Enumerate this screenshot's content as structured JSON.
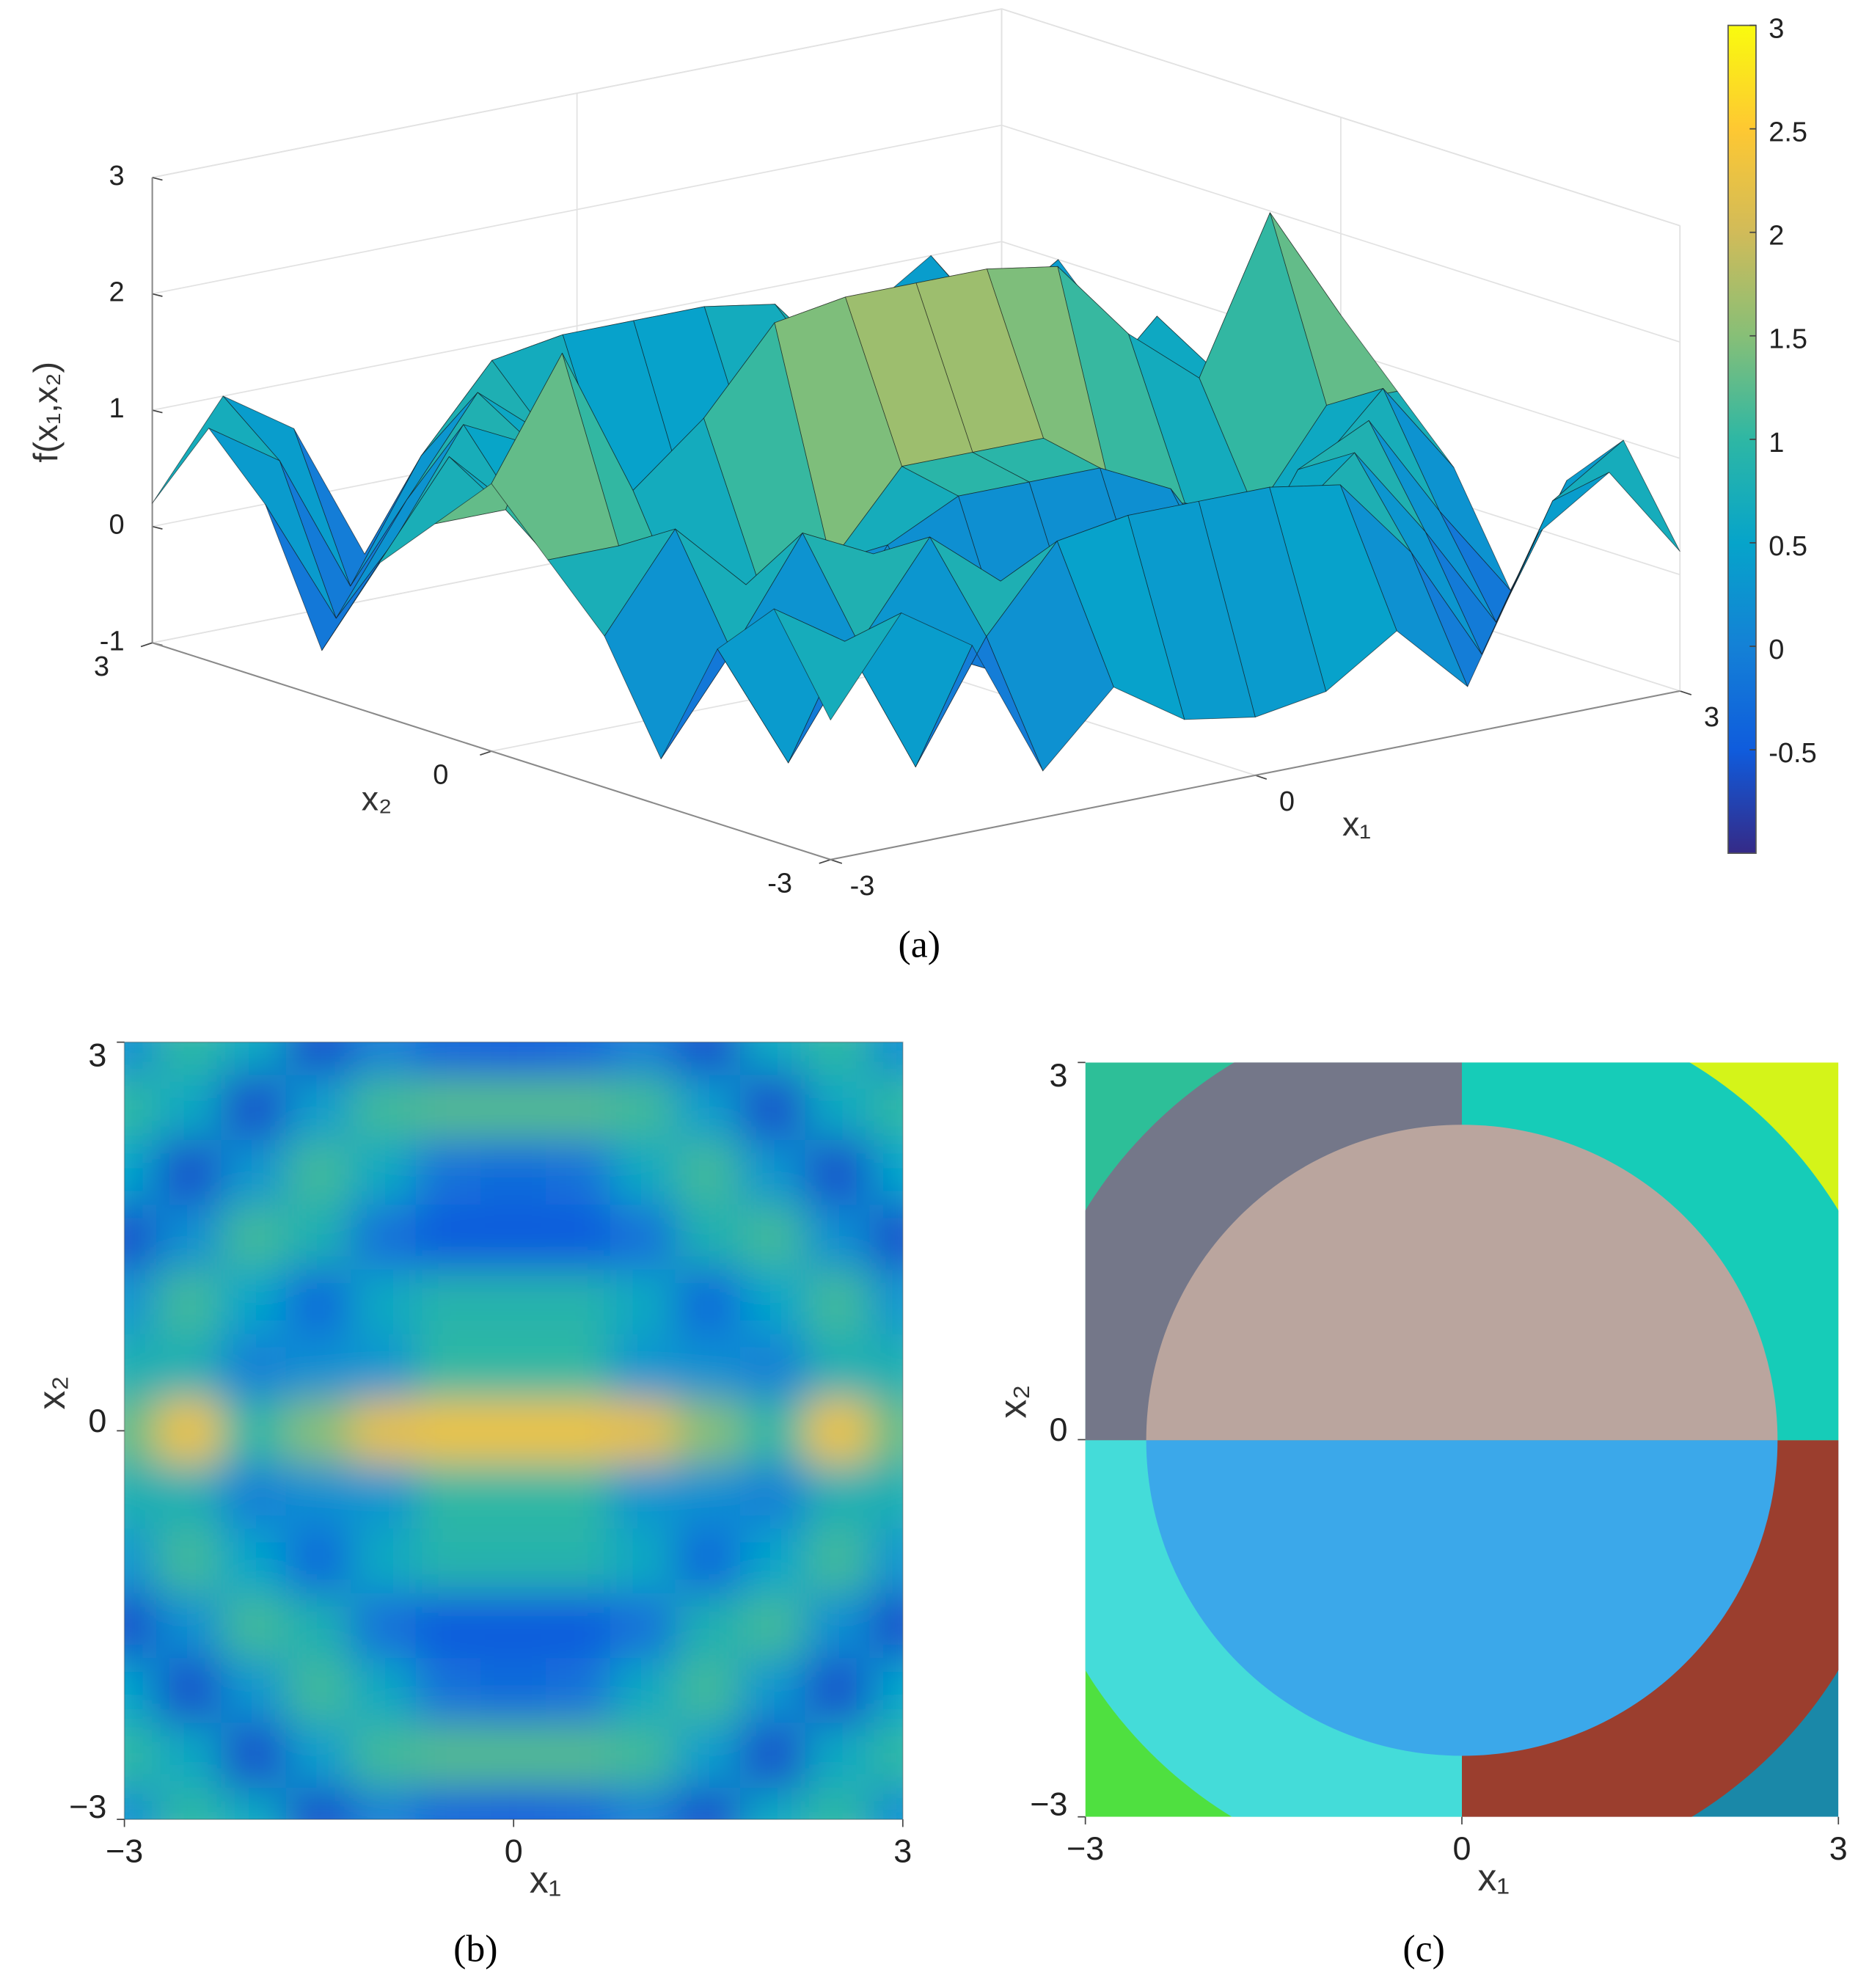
{
  "chart_data": [
    {
      "type": "surface3d",
      "label": "(a)",
      "xlabel": "x₁",
      "ylabel": "x₂",
      "zlabel": "f(x₁,x₂)",
      "x": [
        -3,
        -2.5,
        -2,
        -1.5,
        -1,
        -0.5,
        0,
        0.5,
        1,
        1.5,
        2,
        2.5,
        3
      ],
      "y": [
        -3,
        -2.5,
        -2,
        -1.5,
        -1,
        -0.5,
        0,
        0.5,
        1,
        1.5,
        2,
        2.5,
        3
      ],
      "z": [
        [
          0.2,
          1.0,
          0.6,
          -0.6,
          0,
          -0.4,
          -0.5,
          -0.4,
          0,
          -0.6,
          0.6,
          1.0,
          0.2
        ],
        [
          1.0,
          0.6,
          -0.6,
          0.4,
          1.1,
          1.2,
          1.2,
          1.2,
          1.1,
          0.4,
          -0.6,
          0.6,
          1.0
        ],
        [
          0.5,
          -0.6,
          0.3,
          1.1,
          0.6,
          -0.2,
          -0.3,
          -0.2,
          0.6,
          1.1,
          0.3,
          -0.6,
          0.5
        ],
        [
          -0.6,
          0.2,
          1.1,
          0.8,
          -0.2,
          -0.5,
          -0.5,
          -0.5,
          -0.2,
          0.8,
          1.1,
          0.2,
          -0.6
        ],
        [
          0.3,
          1.1,
          0.5,
          -0.3,
          0.6,
          0.9,
          0.9,
          0.9,
          0.6,
          -0.3,
          0.5,
          1.1,
          0.3
        ],
        [
          0.8,
          0.8,
          0,
          0.2,
          0.3,
          1.0,
          1.0,
          1.0,
          0.3,
          0.2,
          0,
          0.8,
          0.8
        ],
        [
          1.3,
          2.3,
          1.0,
          1.5,
          2.2,
          2.3,
          2.3,
          2.3,
          2.2,
          1.5,
          1.0,
          2.3,
          1.3
        ],
        [
          0.8,
          0.8,
          0,
          0.2,
          0.3,
          1.0,
          1.0,
          1.0,
          0.3,
          0.2,
          0,
          0.8,
          0.8
        ],
        [
          0.3,
          1.1,
          0.5,
          -0.3,
          0.6,
          0.9,
          0.9,
          0.9,
          0.6,
          -0.3,
          0.5,
          1.1,
          0.3
        ],
        [
          -0.6,
          0.2,
          1.1,
          0.8,
          -0.2,
          -0.5,
          -0.5,
          -0.5,
          -0.2,
          0.8,
          1.1,
          0.2,
          -0.6
        ],
        [
          0.5,
          -0.6,
          0.3,
          1.1,
          0.6,
          -0.2,
          -0.3,
          -0.2,
          0.6,
          1.1,
          0.3,
          -0.6,
          0.5
        ],
        [
          1.0,
          0.6,
          -0.6,
          0.4,
          1.1,
          1.2,
          1.2,
          1.2,
          1.1,
          0.4,
          -0.6,
          0.6,
          1.0
        ],
        [
          0.2,
          1.0,
          0.6,
          -0.6,
          0,
          -0.4,
          -0.5,
          -0.4,
          0,
          -0.6,
          0.6,
          1.0,
          0.2
        ]
      ],
      "xlim": [
        -3,
        3
      ],
      "ylim": [
        -3,
        3
      ],
      "zlim": [
        -1,
        3
      ],
      "xticks": [
        -3,
        0,
        3
      ],
      "yticks": [
        -3,
        0,
        3
      ],
      "zticks": [
        -1,
        0,
        1,
        2,
        3
      ],
      "colormap": [
        "#352a87",
        "#0f5cdd",
        "#1481d6",
        "#06a4ca",
        "#2eb7a4",
        "#87bf77",
        "#d1bb59",
        "#fec832",
        "#f9fb0e"
      ],
      "clim": [
        -1,
        3
      ],
      "colorbar_ticks": [
        -0.5,
        0,
        0.5,
        1,
        1.5,
        2,
        2.5,
        3
      ],
      "grid": true
    },
    {
      "type": "heatmap",
      "label": "(b)",
      "xlabel": "x₁",
      "ylabel": "x₂",
      "x": [
        -3,
        -2.5,
        -2,
        -1.5,
        -1,
        -0.5,
        0,
        0.5,
        1,
        1.5,
        2,
        2.5,
        3
      ],
      "y": [
        -3,
        -2.5,
        -2,
        -1.5,
        -1,
        -0.5,
        0,
        0.5,
        1,
        1.5,
        2,
        2.5,
        3
      ],
      "z": [
        [
          0.2,
          1.0,
          0.6,
          -0.6,
          0,
          -0.4,
          -0.5,
          -0.4,
          0,
          -0.6,
          0.6,
          1.0,
          0.2
        ],
        [
          1.0,
          0.6,
          -0.6,
          0.4,
          1.1,
          1.2,
          1.2,
          1.2,
          1.1,
          0.4,
          -0.6,
          0.6,
          1.0
        ],
        [
          0.5,
          -0.6,
          0.3,
          1.1,
          0.6,
          -0.2,
          -0.3,
          -0.2,
          0.6,
          1.1,
          0.3,
          -0.6,
          0.5
        ],
        [
          -0.6,
          0.2,
          1.1,
          0.8,
          -0.2,
          -0.5,
          -0.5,
          -0.5,
          -0.2,
          0.8,
          1.1,
          0.2,
          -0.6
        ],
        [
          0.3,
          1.1,
          0.5,
          -0.3,
          0.6,
          0.9,
          0.9,
          0.9,
          0.6,
          -0.3,
          0.5,
          1.1,
          0.3
        ],
        [
          0.8,
          0.8,
          0,
          0.2,
          0.3,
          1.0,
          1.0,
          1.0,
          0.3,
          0.2,
          0,
          0.8,
          0.8
        ],
        [
          1.3,
          2.3,
          1.0,
          1.5,
          2.2,
          2.3,
          2.3,
          2.3,
          2.2,
          1.5,
          1.0,
          2.3,
          1.3
        ],
        [
          0.8,
          0.8,
          0,
          0.2,
          0.3,
          1.0,
          1.0,
          1.0,
          0.3,
          0.2,
          0,
          0.8,
          0.8
        ],
        [
          0.3,
          1.1,
          0.5,
          -0.3,
          0.6,
          0.9,
          0.9,
          0.9,
          0.6,
          -0.3,
          0.5,
          1.1,
          0.3
        ],
        [
          -0.6,
          0.2,
          1.1,
          0.8,
          -0.2,
          -0.5,
          -0.5,
          -0.5,
          -0.2,
          0.8,
          1.1,
          0.2,
          -0.6
        ],
        [
          0.5,
          -0.6,
          0.3,
          1.1,
          0.6,
          -0.2,
          -0.3,
          -0.2,
          0.6,
          1.1,
          0.3,
          -0.6,
          0.5
        ],
        [
          1.0,
          0.6,
          -0.6,
          0.4,
          1.1,
          1.2,
          1.2,
          1.2,
          1.1,
          0.4,
          -0.6,
          0.6,
          1.0
        ],
        [
          0.2,
          1.0,
          0.6,
          -0.6,
          0,
          -0.4,
          -0.5,
          -0.4,
          0,
          -0.6,
          0.6,
          1.0,
          0.2
        ]
      ],
      "xlim": [
        -3,
        3
      ],
      "ylim": [
        -3,
        3
      ],
      "xticks": [
        {
          "value": -3,
          "label": "−3"
        },
        0,
        3
      ],
      "yticks": [
        {
          "value": -3,
          "label": "−3"
        },
        0,
        3
      ],
      "colormap": [
        "#352a87",
        "#0f5cdd",
        "#1481d6",
        "#06a4ca",
        "#2eb7a4",
        "#87bf77",
        "#d1bb59",
        "#fec832",
        "#f9fb0e"
      ],
      "clim": [
        -1,
        3
      ]
    },
    {
      "type": "regions",
      "label": "(c)",
      "xlabel": "x₁",
      "ylabel": "x₂",
      "xlim": [
        -3,
        3
      ],
      "ylim": [
        -3,
        3
      ],
      "xticks": [
        {
          "value": -3,
          "label": "−3"
        },
        0,
        3
      ],
      "yticks": [
        {
          "value": -3,
          "label": "−3"
        },
        0,
        3
      ]
    }
  ]
}
